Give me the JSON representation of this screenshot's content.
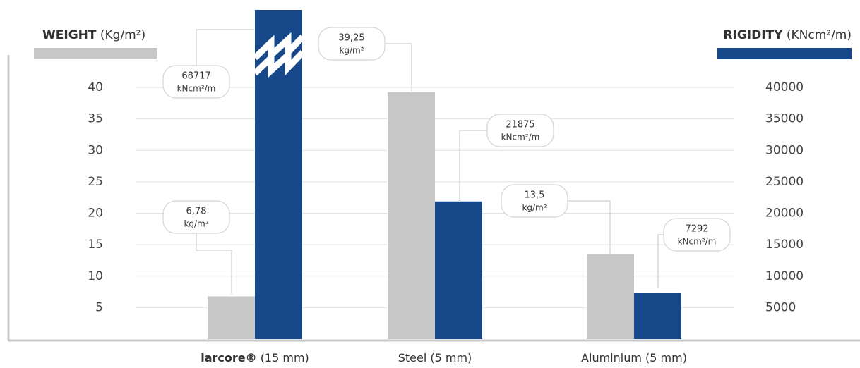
{
  "chart_data": {
    "type": "bar",
    "y_label": {
      "name": "WEIGHT",
      "unit": "(Kg/m²)"
    },
    "y2_label": {
      "name": "RIGIDITY",
      "unit": "(KNcm²/m)"
    },
    "categories": [
      "larcore®",
      "Steel",
      "Aluminium"
    ],
    "category_notes": [
      "(15 mm)",
      "(5 mm)",
      "(5 mm)"
    ],
    "series": [
      {
        "name": "WEIGHT",
        "color": "#c6c7c6",
        "values": [
          6.78,
          39.25,
          13.5
        ],
        "value_labels": [
          "6,78",
          "39,25",
          "13,5"
        ],
        "unit": "kg/m²"
      },
      {
        "name": "RIGIDITY",
        "color": "#17488a",
        "axis": "y2",
        "values": [
          68717,
          21875,
          7292
        ],
        "value_labels": [
          "68717",
          "21875",
          "7292"
        ],
        "unit": "kNcm²/m"
      }
    ],
    "ylim": [
      0,
      40
    ],
    "yticks": [
      5,
      10,
      15,
      20,
      25,
      30,
      35,
      40
    ],
    "y2lim": [
      0,
      40000
    ],
    "y2ticks": [
      5000,
      10000,
      15000,
      20000,
      25000,
      30000,
      35000,
      40000
    ],
    "grid": true
  }
}
